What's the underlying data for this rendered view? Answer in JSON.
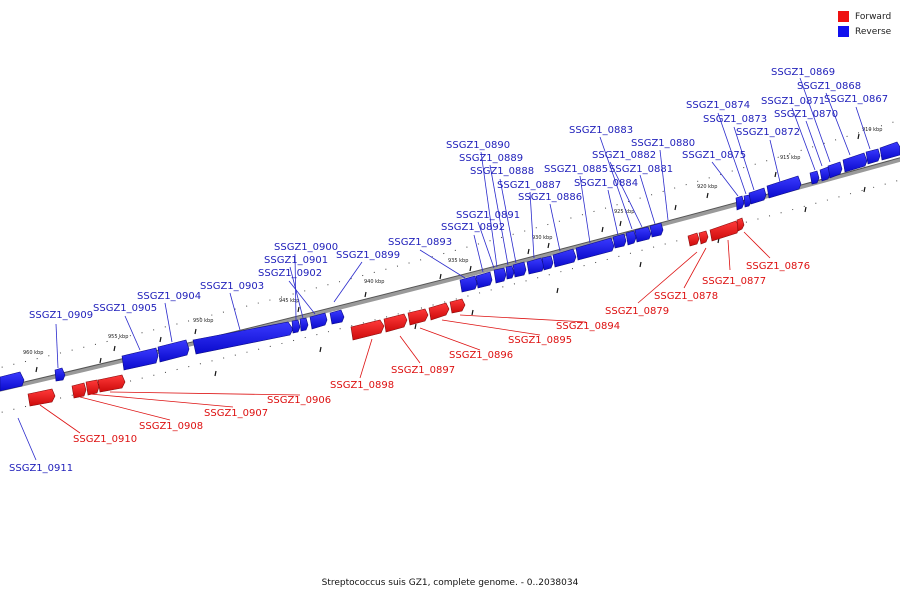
{
  "legend": {
    "forward": {
      "label": "Forward",
      "color": "#ee1111"
    },
    "reverse": {
      "label": "Reverse",
      "color": "#1111ee"
    }
  },
  "caption": "Streptococcus suis GZ1, complete genome. - 0..2038034",
  "ticks": [
    "910 kbp",
    "915 kbp",
    "920 kbp",
    "925 kbp",
    "930 kbp",
    "935 kbp",
    "940 kbp",
    "945 kbp",
    "950 kbp",
    "955 kbp",
    "960 kbp"
  ],
  "genes": {
    "g0867": "SSGZ1_0867",
    "g0868": "SSGZ1_0868",
    "g0869": "SSGZ1_0869",
    "g0870": "SSGZ1_0870",
    "g0871": "SSGZ1_0871",
    "g0872": "SSGZ1_0872",
    "g0873": "SSGZ1_0873",
    "g0874": "SSGZ1_0874",
    "g0875": "SSGZ1_0875",
    "g0876": "SSGZ1_0876",
    "g0877": "SSGZ1_0877",
    "g0878": "SSGZ1_0878",
    "g0879": "SSGZ1_0879",
    "g0880": "SSGZ1_0880",
    "g0881": "SSGZ1_0881",
    "g0882": "SSGZ1_0882",
    "g0883": "SSGZ1_0883",
    "g0884": "SSGZ1_0884",
    "g0885": "SSGZ1_0885",
    "g0886": "SSGZ1_0886",
    "g0887": "SSGZ1_0887",
    "g0888": "SSGZ1_0888",
    "g0889": "SSGZ1_0889",
    "g0890": "SSGZ1_0890",
    "g0891": "SSGZ1_0891",
    "g0892": "SSGZ1_0892",
    "g0893": "SSGZ1_0893",
    "g0894": "SSGZ1_0894",
    "g0895": "SSGZ1_0895",
    "g0896": "SSGZ1_0896",
    "g0897": "SSGZ1_0897",
    "g0898": "SSGZ1_0898",
    "g0899": "SSGZ1_0899",
    "g0900": "SSGZ1_0900",
    "g0901": "SSGZ1_0901",
    "g0902": "SSGZ1_0902",
    "g0903": "SSGZ1_0903",
    "g0904": "SSGZ1_0904",
    "g0905": "SSGZ1_0905",
    "g0906": "SSGZ1_0906",
    "g0907": "SSGZ1_0907",
    "g0908": "SSGZ1_0908",
    "g0909": "SSGZ1_0909",
    "g0910": "SSGZ1_0910",
    "g0911": "SSGZ1_0911"
  }
}
